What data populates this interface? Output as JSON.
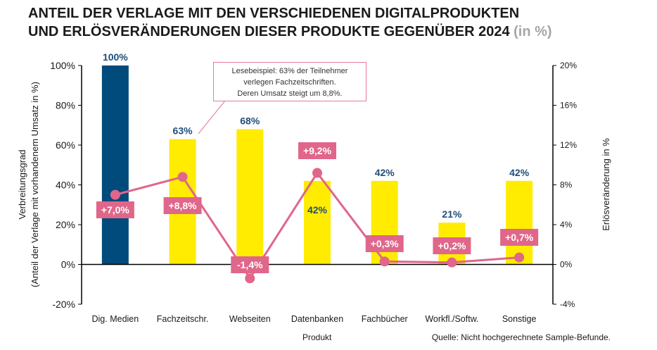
{
  "title": {
    "line1": "ANTEIL DER VERLAGE MIT DEN VERSCHIEDENEN DIGITALPRODUKTEN",
    "line2": "UND ERLÖSVERÄNDERUNGEN DIESER PRODUKTE GEGENÜBER 2024",
    "unit": "(in %)"
  },
  "annotation": {
    "line1": "Lesebeispiel: 63% der Teilnehmer",
    "line2": "verlegen Fachzeitschriften.",
    "line3": "Deren Umsatz steigt um 8,8%."
  },
  "source": "Quelle: Nicht hochgerechnete Sample-Befunde.",
  "chart_data": {
    "type": "bar",
    "categories": [
      "Dig. Medien",
      "Fachzeitschr.",
      "Webseiten",
      "Datenbanken",
      "Fachbücher",
      "Workfl./Softw.",
      "Sonstige"
    ],
    "xlabel": "Produkt",
    "ylabel_line1": "Verbreitungsgrad",
    "ylabel_line2": "(Anteil der Verlage mit vorhandenem Umsatz in %)",
    "y2label": "Erlösveränderung in %",
    "ylim": [
      -20,
      100
    ],
    "y2lim": [
      -4,
      20
    ],
    "yticks": [
      -20,
      0,
      20,
      40,
      60,
      80,
      100
    ],
    "y2ticks": [
      -4,
      0,
      4,
      8,
      12,
      16,
      20
    ],
    "ytick_labels": [
      "-20%",
      "0%",
      "20%",
      "40%",
      "60%",
      "80%",
      "100%"
    ],
    "y2tick_labels": [
      "-4%",
      "0%",
      "4%",
      "8%",
      "12%",
      "16%",
      "20%"
    ],
    "bars": {
      "values": [
        100,
        63,
        68,
        42,
        42,
        21,
        42
      ],
      "labels": [
        "100%",
        "63%",
        "68%",
        "42%",
        "42%",
        "21%",
        "42%"
      ],
      "colors": [
        "#004b7c",
        "#ffec00",
        "#ffec00",
        "#ffec00",
        "#ffec00",
        "#ffec00",
        "#ffec00"
      ]
    },
    "line": {
      "values": [
        7.0,
        8.8,
        -1.4,
        9.2,
        0.3,
        0.2,
        0.7
      ],
      "labels": [
        "+7,0%",
        "+8,8%",
        "-1,4%",
        "+9,2%",
        "+0,3%",
        "+0,2%",
        "+0,7%"
      ],
      "color": "#e0668a"
    },
    "colors": {
      "bar_label": "#1f4e79",
      "line": "#e0668a"
    }
  }
}
